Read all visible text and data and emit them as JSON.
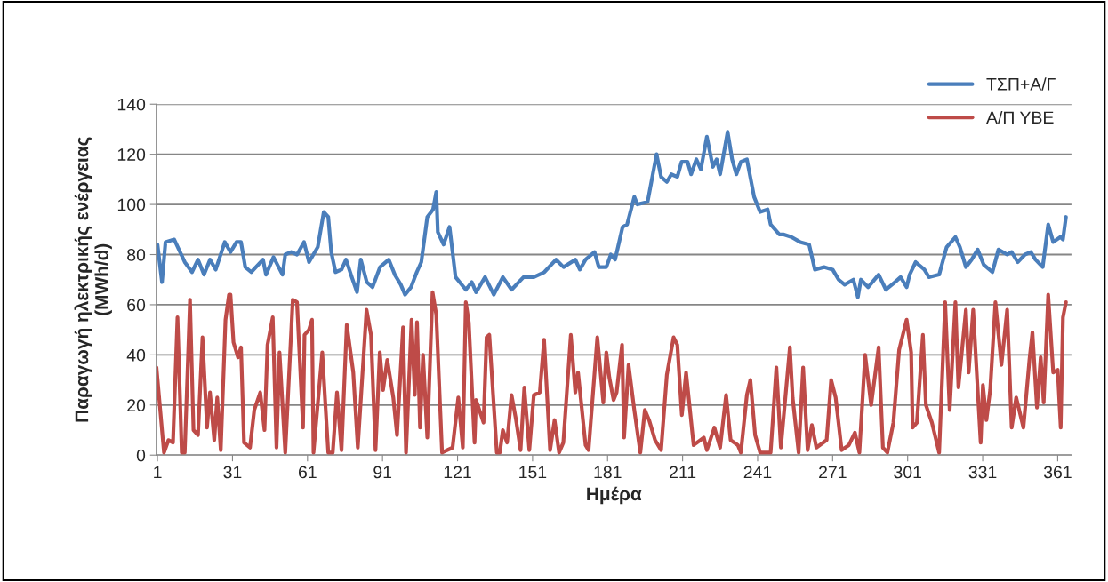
{
  "chart_data": {
    "type": "line",
    "xlabel": "Ημέρα",
    "ylabel": "Παραγωγή ηλεκτρικής ενέργειας\n(MWh/d)",
    "xlim": [
      0.5,
      366.5
    ],
    "xticks": [
      1,
      31,
      61,
      91,
      121,
      151,
      181,
      211,
      241,
      271,
      301,
      331,
      361
    ],
    "ylim": [
      0,
      140
    ],
    "yticks": [
      0,
      20,
      40,
      60,
      80,
      100,
      120,
      140
    ],
    "grid": "y",
    "legend": "top right",
    "line_style": "solid",
    "marker": "none",
    "series": [
      {
        "name": "ΤΣΠ+Α/Γ",
        "color": "#4a7ebb",
        "x": [
          1.0,
          2.8,
          4.2,
          7.7,
          11.9,
          14.8,
          17.2,
          19.6,
          22.0,
          24.3,
          27.9,
          30.2,
          32.6,
          34.4,
          36.1,
          38.5,
          43.2,
          44.4,
          47.4,
          51.0,
          52.1,
          54.5,
          56.8,
          59.6,
          61.6,
          65.1,
          67.5,
          69.3,
          70.5,
          72.2,
          74.6,
          76.4,
          78.7,
          80.8,
          82.3,
          84.7,
          87.0,
          90.0,
          93.5,
          95.9,
          98.3,
          100.0,
          102.4,
          104.7,
          106.5,
          108.9,
          111.2,
          112.5,
          113.1,
          115.4,
          117.8,
          120.2,
          124.3,
          126.7,
          128.4,
          132.0,
          135.5,
          139.1,
          142.6,
          147.4,
          151.5,
          155.7,
          160.4,
          163.4,
          168.1,
          169.9,
          172.2,
          175.8,
          177.5,
          180.5,
          182.3,
          184.0,
          187.0,
          188.8,
          191.7,
          192.9,
          197.0,
          200.6,
          202.4,
          204.7,
          206.5,
          208.9,
          210.6,
          213.0,
          214.4,
          216.5,
          218.3,
          220.7,
          223.1,
          224.6,
          226.0,
          229.0,
          230.8,
          232.5,
          234.3,
          236.7,
          239.6,
          242.0,
          245.0,
          246.2,
          249.7,
          251.5,
          254.5,
          258.0,
          261.6,
          263.9,
          267.5,
          271.0,
          273.4,
          275.8,
          279.3,
          281.1,
          282.3,
          285.2,
          289.4,
          292.3,
          295.9,
          298.2,
          300.6,
          301.8,
          304.2,
          307.7,
          309.5,
          313.6,
          316.6,
          320.1,
          321.9,
          324.3,
          326.6,
          329.0,
          331.4,
          334.9,
          337.3,
          340.8,
          342.6,
          345.0,
          347.9,
          350.3,
          352.1,
          355.0,
          357.2,
          359.2,
          362.1,
          363.1,
          364.3
        ],
        "values": [
          84,
          69,
          85,
          86,
          77,
          73,
          78,
          72,
          78,
          74,
          85,
          81,
          85,
          85,
          75,
          73,
          78,
          72,
          79,
          72,
          80,
          81,
          80,
          85,
          77,
          83,
          97,
          95,
          81,
          73,
          74,
          78,
          71,
          65,
          78,
          69,
          67,
          75,
          78,
          72,
          68,
          64,
          67,
          73,
          77,
          95,
          98,
          105,
          89,
          84,
          91,
          71,
          66,
          69,
          65,
          71,
          64,
          71,
          66,
          71,
          71,
          73,
          78,
          75,
          78,
          74,
          78,
          81,
          75,
          75,
          80,
          78,
          91,
          92,
          103,
          100,
          101,
          120,
          111,
          109,
          112,
          111,
          117,
          117,
          112,
          118,
          114,
          127,
          115,
          118,
          112,
          129,
          118,
          112,
          117,
          118,
          103,
          97,
          98,
          92,
          88,
          88,
          87,
          85,
          84,
          74,
          75,
          74,
          70,
          68,
          70,
          63,
          70,
          67,
          72,
          66,
          69,
          71,
          67,
          72,
          77,
          74,
          71,
          72,
          83,
          87,
          83,
          75,
          78,
          82,
          76,
          73,
          82,
          80,
          81,
          77,
          80,
          81,
          78,
          75,
          92,
          85,
          87,
          86,
          95
        ]
      },
      {
        "name": "Α/Π ΥΒΕ",
        "color": "#be4b48",
        "x": [
          0.6,
          3.6,
          5.4,
          7.2,
          9.0,
          10.7,
          11.9,
          14.0,
          15.4,
          17.2,
          19.0,
          20.8,
          22.0,
          23.7,
          24.9,
          26.3,
          28.2,
          29.6,
          30.2,
          31.4,
          33.2,
          34.4,
          35.6,
          38.0,
          39.7,
          42.1,
          43.8,
          45.0,
          47.1,
          48.6,
          49.8,
          52.1,
          55.1,
          56.8,
          59.2,
          59.8,
          61.6,
          62.8,
          63.4,
          66.9,
          69.3,
          71.1,
          72.8,
          74.6,
          76.7,
          79.3,
          81.1,
          84.6,
          86.4,
          88.2,
          89.9,
          91.2,
          92.9,
          95.3,
          96.8,
          99.2,
          100.4,
          102.6,
          103.9,
          104.8,
          106.0,
          107.2,
          108.9,
          111.0,
          112.5,
          114.8,
          119.0,
          121.3,
          123.1,
          124.3,
          125.5,
          127.8,
          128.4,
          131.4,
          132.6,
          133.7,
          136.7,
          137.9,
          139.1,
          140.8,
          142.6,
          144.4,
          146.2,
          147.7,
          149.7,
          151.5,
          153.9,
          155.6,
          158.0,
          159.8,
          161.6,
          163.3,
          166.3,
          168.1,
          169.2,
          172.2,
          173.4,
          176.9,
          179.3,
          180.5,
          181.7,
          183.4,
          184.6,
          186.8,
          187.6,
          189.4,
          191.7,
          194.1,
          195.9,
          197.6,
          200.0,
          202.4,
          204.7,
          207.4,
          208.9,
          210.7,
          212.4,
          215.4,
          219.5,
          220.7,
          223.7,
          226.0,
          228.4,
          230.2,
          233.1,
          234.3,
          236.7,
          238.1,
          240.0,
          242.0,
          243.8,
          246.2,
          248.5,
          250.3,
          253.9,
          255.0,
          257.4,
          259.2,
          261.0,
          262.7,
          264.5,
          268.6,
          270.4,
          272.2,
          274.6,
          277.5,
          279.9,
          281.7,
          284.0,
          286.4,
          289.4,
          291.1,
          292.9,
          295.3,
          297.6,
          300.6,
          302.4,
          303.0,
          304.7,
          307.1,
          308.3,
          310.7,
          313.6,
          316.0,
          317.8,
          320.1,
          321.3,
          324.3,
          325.4,
          327.2,
          330.2,
          331.1,
          332.5,
          334.0,
          336.1,
          338.5,
          340.8,
          342.6,
          344.4,
          347.3,
          349.7,
          350.9,
          352.7,
          354.2,
          355.4,
          357.2,
          359.2,
          361.0,
          362.2,
          363.1,
          364.3
        ],
        "values": [
          35,
          1,
          6,
          5,
          55,
          1,
          1,
          62,
          10,
          8,
          47,
          11,
          25,
          6,
          23,
          2,
          54,
          64,
          64,
          45,
          39,
          43,
          5,
          3,
          18,
          25,
          10,
          44,
          55,
          3,
          41,
          1,
          62,
          61,
          11,
          48,
          50,
          54,
          1,
          41,
          1,
          1,
          25,
          2,
          52,
          33,
          3,
          58,
          48,
          2,
          41,
          26,
          38,
          23,
          8,
          51,
          1,
          54,
          24,
          53,
          11,
          40,
          7,
          65,
          56,
          1,
          3,
          23,
          3,
          61,
          53,
          5,
          22,
          13,
          47,
          48,
          1,
          1,
          10,
          5,
          24,
          14,
          2,
          27,
          2,
          24,
          25,
          46,
          2,
          14,
          1,
          5,
          48,
          25,
          33,
          4,
          2,
          47,
          21,
          41,
          31,
          22,
          25,
          44,
          7,
          36,
          18,
          1,
          18,
          14,
          6,
          2,
          32,
          47,
          44,
          16,
          33,
          4,
          7,
          2,
          11,
          3,
          24,
          6,
          4,
          1,
          24,
          30,
          8,
          1,
          1,
          1,
          35,
          3,
          43,
          23,
          1,
          35,
          2,
          12,
          3,
          6,
          30,
          23,
          2,
          4,
          9,
          1,
          40,
          20,
          43,
          3,
          1,
          13,
          42,
          54,
          41,
          11,
          13,
          48,
          20,
          13,
          1,
          61,
          18,
          61,
          27,
          58,
          33,
          58,
          5,
          28,
          14,
          26,
          61,
          36,
          58,
          11,
          23,
          11,
          38,
          49,
          19,
          39,
          21,
          64,
          33,
          34,
          11,
          55,
          61
        ]
      }
    ]
  }
}
